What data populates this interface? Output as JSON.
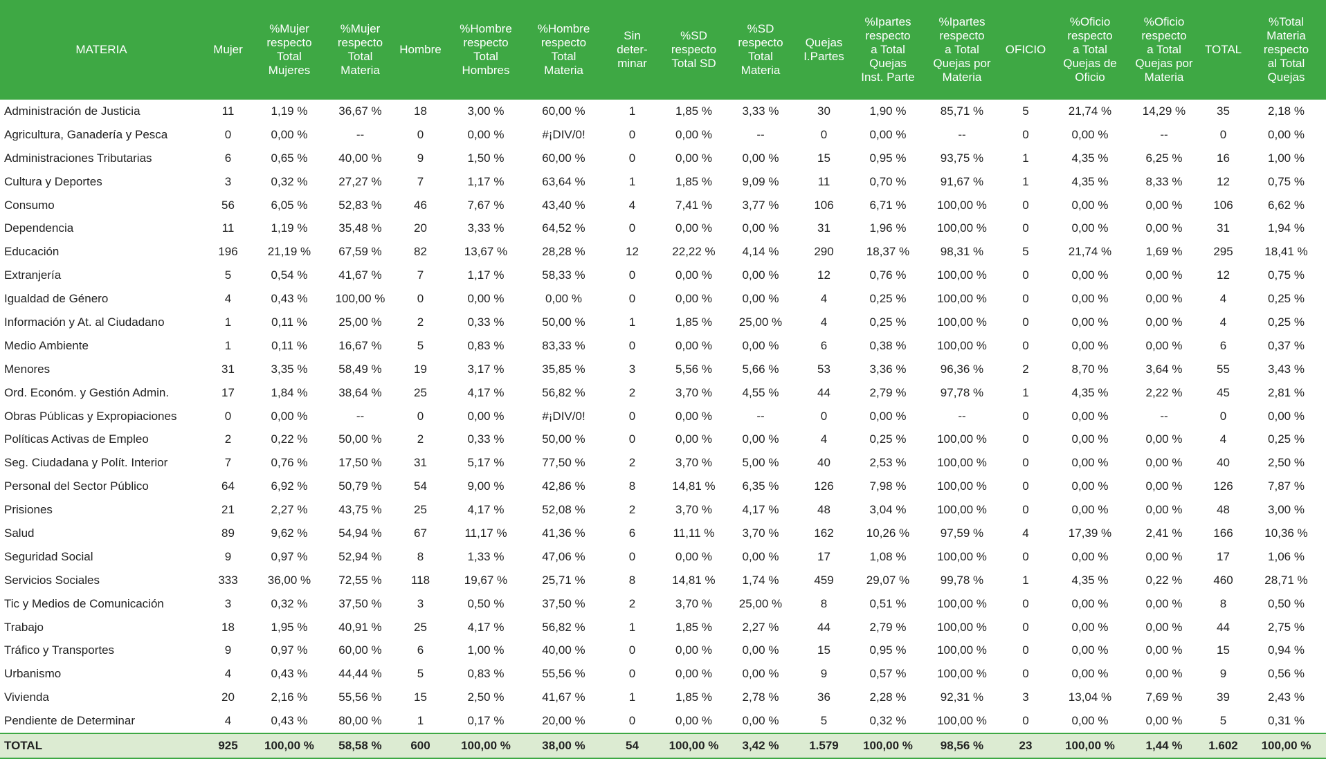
{
  "table": {
    "header": [
      "MATERIA",
      "Mujer",
      "%Mujer\nrespecto\nTotal\nMujeres",
      "%Mujer\nrespecto\nTotal\nMateria",
      "Hombre",
      "%Hombre\nrespecto\nTotal\nHombres",
      "%Hombre\nrespecto\nTotal\nMateria",
      "Sin\ndeter-\nminar",
      "%SD\nrespecto\nTotal SD",
      "%SD\nrespecto\nTotal\nMateria",
      "Quejas\nI.Partes",
      "%Ipartes\nrespecto\na Total\nQuejas\nInst. Parte",
      "%Ipartes\nrespecto\na Total\nQuejas por\nMateria",
      "OFICIO",
      "%Oficio\nrespecto\na Total\nQuejas de\nOficio",
      "%Oficio\nrespecto\na Total\nQuejas por\nMateria",
      "TOTAL",
      "%Total\nMateria\nrespecto\nal Total\nQuejas"
    ],
    "rows": [
      [
        "Administración de Justicia",
        "11",
        "1,19 %",
        "36,67 %",
        "18",
        "3,00 %",
        "60,00 %",
        "1",
        "1,85 %",
        "3,33 %",
        "30",
        "1,90 %",
        "85,71 %",
        "5",
        "21,74 %",
        "14,29 %",
        "35",
        "2,18 %"
      ],
      [
        "Agricultura, Ganadería y Pesca",
        "0",
        "0,00 %",
        "--",
        "0",
        "0,00 %",
        "#¡DIV/0!",
        "0",
        "0,00 %",
        "--",
        "0",
        "0,00 %",
        "--",
        "0",
        "0,00 %",
        "--",
        "0",
        "0,00 %"
      ],
      [
        "Administraciones Tributarias",
        "6",
        "0,65 %",
        "40,00 %",
        "9",
        "1,50 %",
        "60,00 %",
        "0",
        "0,00 %",
        "0,00 %",
        "15",
        "0,95 %",
        "93,75 %",
        "1",
        "4,35 %",
        "6,25 %",
        "16",
        "1,00 %"
      ],
      [
        "Cultura y Deportes",
        "3",
        "0,32 %",
        "27,27 %",
        "7",
        "1,17 %",
        "63,64 %",
        "1",
        "1,85 %",
        "9,09 %",
        "11",
        "0,70 %",
        "91,67 %",
        "1",
        "4,35 %",
        "8,33 %",
        "12",
        "0,75 %"
      ],
      [
        "Consumo",
        "56",
        "6,05 %",
        "52,83 %",
        "46",
        "7,67 %",
        "43,40 %",
        "4",
        "7,41 %",
        "3,77 %",
        "106",
        "6,71 %",
        "100,00 %",
        "0",
        "0,00 %",
        "0,00 %",
        "106",
        "6,62 %"
      ],
      [
        "Dependencia",
        "11",
        "1,19 %",
        "35,48 %",
        "20",
        "3,33 %",
        "64,52 %",
        "0",
        "0,00 %",
        "0,00 %",
        "31",
        "1,96 %",
        "100,00 %",
        "0",
        "0,00 %",
        "0,00 %",
        "31",
        "1,94 %"
      ],
      [
        "Educación",
        "196",
        "21,19 %",
        "67,59 %",
        "82",
        "13,67 %",
        "28,28 %",
        "12",
        "22,22 %",
        "4,14 %",
        "290",
        "18,37 %",
        "98,31 %",
        "5",
        "21,74 %",
        "1,69 %",
        "295",
        "18,41 %"
      ],
      [
        "Extranjería",
        "5",
        "0,54 %",
        "41,67 %",
        "7",
        "1,17 %",
        "58,33 %",
        "0",
        "0,00 %",
        "0,00 %",
        "12",
        "0,76 %",
        "100,00 %",
        "0",
        "0,00 %",
        "0,00 %",
        "12",
        "0,75 %"
      ],
      [
        "Igualdad de Género",
        "4",
        "0,43 %",
        "100,00 %",
        "0",
        "0,00 %",
        "0,00 %",
        "0",
        "0,00 %",
        "0,00 %",
        "4",
        "0,25 %",
        "100,00 %",
        "0",
        "0,00 %",
        "0,00 %",
        "4",
        "0,25 %"
      ],
      [
        "Información y At. al Ciudadano",
        "1",
        "0,11 %",
        "25,00 %",
        "2",
        "0,33 %",
        "50,00 %",
        "1",
        "1,85 %",
        "25,00 %",
        "4",
        "0,25 %",
        "100,00 %",
        "0",
        "0,00 %",
        "0,00 %",
        "4",
        "0,25 %"
      ],
      [
        "Medio Ambiente",
        "1",
        "0,11 %",
        "16,67 %",
        "5",
        "0,83 %",
        "83,33 %",
        "0",
        "0,00 %",
        "0,00 %",
        "6",
        "0,38 %",
        "100,00 %",
        "0",
        "0,00 %",
        "0,00 %",
        "6",
        "0,37 %"
      ],
      [
        "Menores",
        "31",
        "3,35 %",
        "58,49 %",
        "19",
        "3,17 %",
        "35,85 %",
        "3",
        "5,56 %",
        "5,66 %",
        "53",
        "3,36 %",
        "96,36 %",
        "2",
        "8,70 %",
        "3,64 %",
        "55",
        "3,43 %"
      ],
      [
        "Ord. Económ. y Gestión Admin.",
        "17",
        "1,84 %",
        "38,64 %",
        "25",
        "4,17 %",
        "56,82 %",
        "2",
        "3,70 %",
        "4,55 %",
        "44",
        "2,79 %",
        "97,78 %",
        "1",
        "4,35 %",
        "2,22 %",
        "45",
        "2,81 %"
      ],
      [
        "Obras Públicas y Expropiaciones",
        "0",
        "0,00 %",
        "--",
        "0",
        "0,00 %",
        "#¡DIV/0!",
        "0",
        "0,00 %",
        "--",
        "0",
        "0,00 %",
        "--",
        "0",
        "0,00 %",
        "--",
        "0",
        "0,00 %"
      ],
      [
        "Políticas Activas de Empleo",
        "2",
        "0,22 %",
        "50,00 %",
        "2",
        "0,33 %",
        "50,00 %",
        "0",
        "0,00 %",
        "0,00 %",
        "4",
        "0,25 %",
        "100,00 %",
        "0",
        "0,00 %",
        "0,00 %",
        "4",
        "0,25 %"
      ],
      [
        "Seg. Ciudadana y Polít. Interior",
        "7",
        "0,76 %",
        "17,50 %",
        "31",
        "5,17 %",
        "77,50 %",
        "2",
        "3,70 %",
        "5,00 %",
        "40",
        "2,53 %",
        "100,00 %",
        "0",
        "0,00 %",
        "0,00 %",
        "40",
        "2,50 %"
      ],
      [
        "Personal del Sector Público",
        "64",
        "6,92 %",
        "50,79 %",
        "54",
        "9,00 %",
        "42,86 %",
        "8",
        "14,81 %",
        "6,35 %",
        "126",
        "7,98 %",
        "100,00 %",
        "0",
        "0,00 %",
        "0,00 %",
        "126",
        "7,87 %"
      ],
      [
        "Prisiones",
        "21",
        "2,27 %",
        "43,75 %",
        "25",
        "4,17 %",
        "52,08 %",
        "2",
        "3,70 %",
        "4,17 %",
        "48",
        "3,04 %",
        "100,00 %",
        "0",
        "0,00 %",
        "0,00 %",
        "48",
        "3,00 %"
      ],
      [
        "Salud",
        "89",
        "9,62 %",
        "54,94 %",
        "67",
        "11,17 %",
        "41,36 %",
        "6",
        "11,11 %",
        "3,70 %",
        "162",
        "10,26 %",
        "97,59 %",
        "4",
        "17,39 %",
        "2,41 %",
        "166",
        "10,36 %"
      ],
      [
        "Seguridad Social",
        "9",
        "0,97 %",
        "52,94 %",
        "8",
        "1,33 %",
        "47,06 %",
        "0",
        "0,00 %",
        "0,00 %",
        "17",
        "1,08 %",
        "100,00 %",
        "0",
        "0,00 %",
        "0,00 %",
        "17",
        "1,06 %"
      ],
      [
        "Servicios Sociales",
        "333",
        "36,00 %",
        "72,55 %",
        "118",
        "19,67 %",
        "25,71 %",
        "8",
        "14,81 %",
        "1,74 %",
        "459",
        "29,07 %",
        "99,78 %",
        "1",
        "4,35 %",
        "0,22 %",
        "460",
        "28,71 %"
      ],
      [
        "Tic y Medios de Comunicación",
        "3",
        "0,32 %",
        "37,50 %",
        "3",
        "0,50 %",
        "37,50 %",
        "2",
        "3,70 %",
        "25,00 %",
        "8",
        "0,51 %",
        "100,00 %",
        "0",
        "0,00 %",
        "0,00 %",
        "8",
        "0,50 %"
      ],
      [
        "Trabajo",
        "18",
        "1,95 %",
        "40,91 %",
        "25",
        "4,17 %",
        "56,82 %",
        "1",
        "1,85 %",
        "2,27 %",
        "44",
        "2,79 %",
        "100,00 %",
        "0",
        "0,00 %",
        "0,00 %",
        "44",
        "2,75 %"
      ],
      [
        "Tráfico y Transportes",
        "9",
        "0,97 %",
        "60,00 %",
        "6",
        "1,00 %",
        "40,00 %",
        "0",
        "0,00 %",
        "0,00 %",
        "15",
        "0,95 %",
        "100,00 %",
        "0",
        "0,00 %",
        "0,00 %",
        "15",
        "0,94 %"
      ],
      [
        "Urbanismo",
        "4",
        "0,43 %",
        "44,44 %",
        "5",
        "0,83 %",
        "55,56 %",
        "0",
        "0,00 %",
        "0,00 %",
        "9",
        "0,57 %",
        "100,00 %",
        "0",
        "0,00 %",
        "0,00 %",
        "9",
        "0,56 %"
      ],
      [
        "Vivienda",
        "20",
        "2,16 %",
        "55,56 %",
        "15",
        "2,50 %",
        "41,67 %",
        "1",
        "1,85 %",
        "2,78 %",
        "36",
        "2,28 %",
        "92,31 %",
        "3",
        "13,04 %",
        "7,69 %",
        "39",
        "2,43 %"
      ],
      [
        "Pendiente de Determinar",
        "4",
        "0,43 %",
        "80,00 %",
        "1",
        "0,17 %",
        "20,00 %",
        "0",
        "0,00 %",
        "0,00 %",
        "5",
        "0,32 %",
        "100,00 %",
        "0",
        "0,00 %",
        "0,00 %",
        "5",
        "0,31 %"
      ]
    ],
    "total": [
      "TOTAL",
      "925",
      "100,00 %",
      "58,58 %",
      "600",
      "100,00 %",
      "38,00 %",
      "54",
      "100,00 %",
      "3,42 %",
      "1.579",
      "100,00 %",
      "98,56 %",
      "23",
      "100,00 %",
      "1,44 %",
      "1.602",
      "100,00 %"
    ]
  }
}
